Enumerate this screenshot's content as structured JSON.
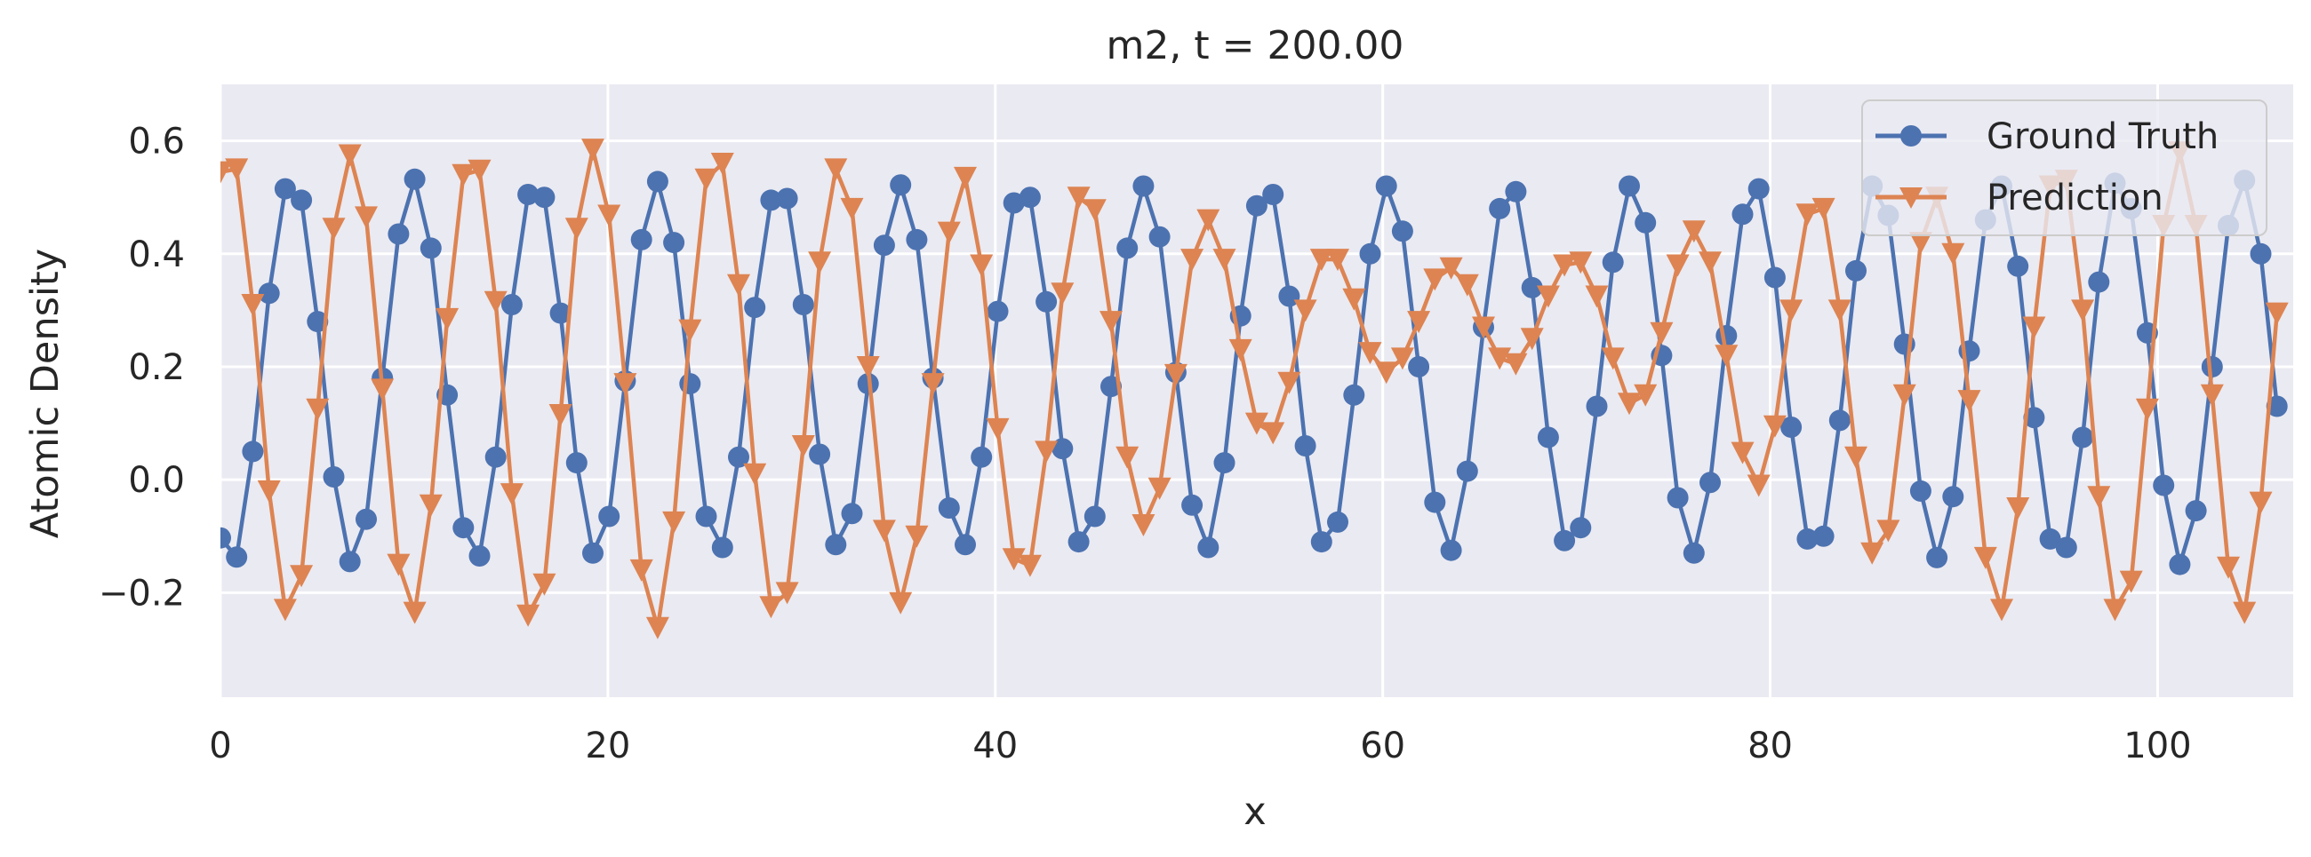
{
  "chart_data": {
    "type": "line",
    "title": "m2, t = 200.00",
    "xlabel": "x",
    "ylabel": "Atomic Density",
    "xlim": [
      0,
      107
    ],
    "ylim": [
      -0.385,
      0.7
    ],
    "xticks": [
      0,
      20,
      40,
      60,
      80,
      100
    ],
    "xtick_labels": [
      "0",
      "20",
      "40",
      "60",
      "80",
      "100"
    ],
    "yticks": [
      -0.2,
      0.0,
      0.2,
      0.4,
      0.6
    ],
    "ytick_labels": [
      "−0.2",
      "0.0",
      "0.2",
      "0.4",
      "0.6"
    ],
    "grid": true,
    "legend_position": "top-right",
    "background_color": "#eaeaf2",
    "grid_color": "#ffffff",
    "x_step": 0.8359,
    "series": [
      {
        "name": "Ground Truth",
        "color": "#4c72b0",
        "marker": "circle",
        "values": [
          -0.103,
          -0.137,
          0.05,
          0.33,
          0.515,
          0.495,
          0.28,
          0.005,
          -0.145,
          -0.07,
          0.18,
          0.435,
          0.532,
          0.41,
          0.15,
          -0.085,
          -0.135,
          0.04,
          0.31,
          0.505,
          0.5,
          0.295,
          0.03,
          -0.13,
          -0.065,
          0.175,
          0.425,
          0.528,
          0.42,
          0.17,
          -0.065,
          -0.12,
          0.04,
          0.305,
          0.495,
          0.498,
          0.31,
          0.045,
          -0.115,
          -0.06,
          0.17,
          0.415,
          0.522,
          0.425,
          0.18,
          -0.05,
          -0.115,
          0.04,
          0.298,
          0.49,
          0.5,
          0.315,
          0.055,
          -0.11,
          -0.065,
          0.165,
          0.41,
          0.52,
          0.43,
          0.19,
          -0.045,
          -0.12,
          0.03,
          0.29,
          0.485,
          0.505,
          0.325,
          0.06,
          -0.11,
          -0.075,
          0.15,
          0.4,
          0.52,
          0.44,
          0.2,
          -0.04,
          -0.125,
          0.015,
          0.27,
          0.48,
          0.51,
          0.34,
          0.075,
          -0.108,
          -0.085,
          0.13,
          0.385,
          0.52,
          0.455,
          0.22,
          -0.032,
          -0.13,
          -0.005,
          0.255,
          0.47,
          0.515,
          0.358,
          0.093,
          -0.105,
          -0.1,
          0.105,
          0.37,
          0.52,
          0.468,
          0.24,
          -0.02,
          -0.138,
          -0.03,
          0.228,
          0.46,
          0.52,
          0.378,
          0.11,
          -0.105,
          -0.12,
          0.075,
          0.35,
          0.525,
          0.48,
          0.26,
          -0.01,
          -0.15,
          -0.055,
          0.2,
          0.45,
          0.53,
          0.4,
          0.13
        ]
      },
      {
        "name": "Prediction",
        "color": "#dd8452",
        "marker": "triangle-down",
        "values": [
          0.545,
          0.55,
          0.31,
          -0.02,
          -0.23,
          -0.17,
          0.125,
          0.445,
          0.575,
          0.465,
          0.16,
          -0.15,
          -0.235,
          -0.045,
          0.285,
          0.54,
          0.548,
          0.315,
          -0.025,
          -0.24,
          -0.185,
          0.115,
          0.445,
          0.585,
          0.468,
          0.17,
          -0.16,
          -0.262,
          -0.075,
          0.265,
          0.532,
          0.56,
          0.345,
          0.01,
          -0.225,
          -0.2,
          0.06,
          0.385,
          0.55,
          0.48,
          0.2,
          -0.09,
          -0.218,
          -0.1,
          0.17,
          0.438,
          0.535,
          0.38,
          0.09,
          -0.14,
          -0.152,
          0.05,
          0.33,
          0.5,
          0.478,
          0.28,
          0.04,
          -0.08,
          -0.015,
          0.186,
          0.39,
          0.46,
          0.39,
          0.23,
          0.1,
          0.083,
          0.172,
          0.3,
          0.39,
          0.39,
          0.32,
          0.225,
          0.19,
          0.215,
          0.28,
          0.355,
          0.375,
          0.345,
          0.27,
          0.215,
          0.205,
          0.25,
          0.325,
          0.38,
          0.385,
          0.325,
          0.215,
          0.135,
          0.15,
          0.26,
          0.38,
          0.44,
          0.385,
          0.22,
          0.048,
          -0.01,
          0.095,
          0.3,
          0.47,
          0.48,
          0.3,
          0.04,
          -0.13,
          -0.09,
          0.15,
          0.42,
          0.5,
          0.4,
          0.14,
          -0.138,
          -0.23,
          -0.05,
          0.27,
          0.52,
          0.53,
          0.3,
          -0.03,
          -0.23,
          -0.18,
          0.125,
          0.45,
          0.58,
          0.45,
          0.15,
          -0.155,
          -0.235,
          -0.04,
          0.295
        ]
      }
    ]
  }
}
